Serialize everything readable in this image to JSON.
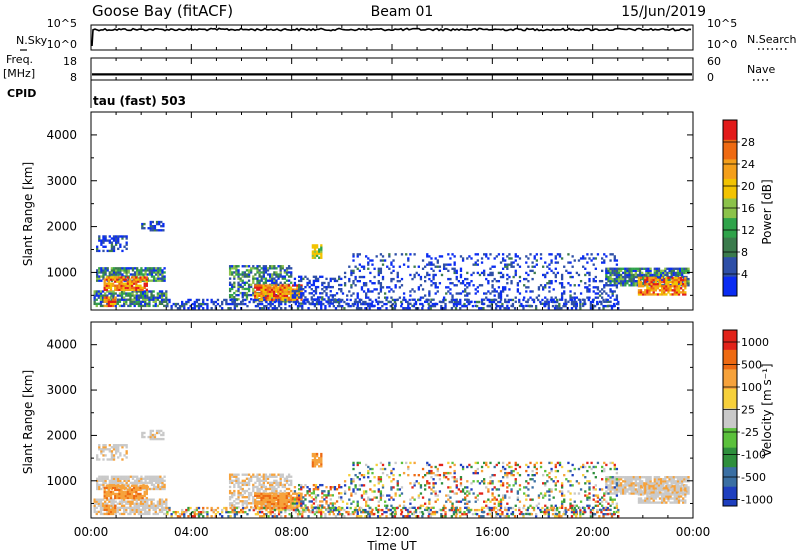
{
  "header": {
    "station": "Goose Bay (fitACF)",
    "beam": "Beam 01",
    "date": "15/Jun/2019"
  },
  "left_labels": {
    "nsky": "N.Sky",
    "freq_top": "Freq.",
    "freq_unit": "[MHz]",
    "cpid": "CPID"
  },
  "right_labels": {
    "nsearch": "N.Search",
    "nave": "Nave"
  },
  "cpid_text": "tau (fast) 503",
  "colors": {
    "power": [
      "#0a2cf2",
      "#2e4fa7",
      "#3b7b4c",
      "#2fa34a",
      "#8bc24a",
      "#f2c300",
      "#f49f1a",
      "#ee6a12",
      "#e21a1a"
    ],
    "velocity": [
      "#1e3fbf",
      "#3a6fa3",
      "#2e8f3c",
      "#5bc13c",
      "#c9c9c9",
      "#f6d03b",
      "#f6a23b",
      "#ee6a12",
      "#e2231a"
    ]
  },
  "chart_data": [
    {
      "type": "line",
      "panel": "noise",
      "series": [
        {
          "name": "N.Sky",
          "axis": "left",
          "ylim_exp": [
            0,
            5
          ],
          "value_exp": 4.4
        },
        {
          "name": "N.Search",
          "axis": "right",
          "ylim_exp": [
            0,
            5
          ],
          "value_exp": 4.4
        }
      ],
      "left_ticks": [
        "10^5",
        "10^0"
      ],
      "right_ticks": [
        "10^5",
        "10^0"
      ]
    },
    {
      "type": "line",
      "panel": "freq-nave",
      "series": [
        {
          "name": "Freq.",
          "axis": "left",
          "ylim": [
            8,
            18
          ],
          "value": 10
        },
        {
          "name": "Nave",
          "axis": "right",
          "ylim": [
            0,
            60
          ],
          "value": 12
        }
      ],
      "left_ticks": [
        "18",
        "8"
      ],
      "right_ticks": [
        "60",
        "0"
      ]
    },
    {
      "type": "heatmap",
      "panel": "power",
      "xlabel": "",
      "ylabel": "Slant Range [km]",
      "ylim": [
        180,
        4500
      ],
      "y_ticks": [
        "1000",
        "2000",
        "3000",
        "4000"
      ],
      "colorbar_label": "Power [dB]",
      "colorbar_ticks": [
        "4",
        "8",
        "12",
        "16",
        "20",
        "24",
        "28"
      ]
    },
    {
      "type": "heatmap",
      "panel": "velocity",
      "xlabel": "Time UT",
      "ylabel": "Slant Range [km]",
      "ylim": [
        180,
        4500
      ],
      "y_ticks": [
        "1000",
        "2000",
        "3000",
        "4000"
      ],
      "x_ticks": [
        "00:00",
        "04:00",
        "08:00",
        "12:00",
        "16:00",
        "20:00",
        "00:00"
      ],
      "colorbar_label": "Velocity [m s⁻¹]",
      "colorbar_ticks": [
        "1000",
        "500",
        "100",
        "25",
        "-25",
        "-100",
        "-500",
        "-1000"
      ]
    }
  ]
}
